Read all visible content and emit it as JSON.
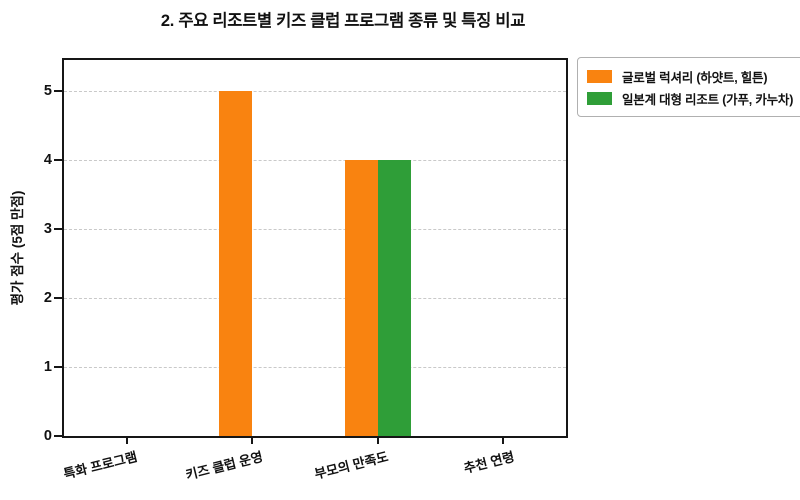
{
  "chart_data": {
    "type": "bar",
    "title": "2. 주요 리조트별 키즈 클럽 프로그램 종류 및 특징 비교",
    "categories": [
      "특화 프로그램",
      "키즈 클럽 운영",
      "부모의 만족도",
      "추천 연령"
    ],
    "series": [
      {
        "name": "글로벌 럭셔리 (하얏트, 힐튼)",
        "color": "#f98310",
        "values": [
          0,
          5,
          4,
          0
        ]
      },
      {
        "name": "일본계 대형 리조트 (가푸, 카누차)",
        "color": "#2f9e38",
        "values": [
          0,
          0,
          4,
          0
        ]
      }
    ],
    "xlabel": "",
    "ylabel": "평가 점수 (5점 만점)",
    "yticks": [
      0,
      1,
      2,
      3,
      4,
      5
    ],
    "ylim": [
      0,
      5.45
    ],
    "grid": "horizontal-dashed",
    "legend_position": "upper-right-outside",
    "axis_color": "#161616",
    "grid_color": "#c9c9c9",
    "background_color": "#ffffff"
  }
}
